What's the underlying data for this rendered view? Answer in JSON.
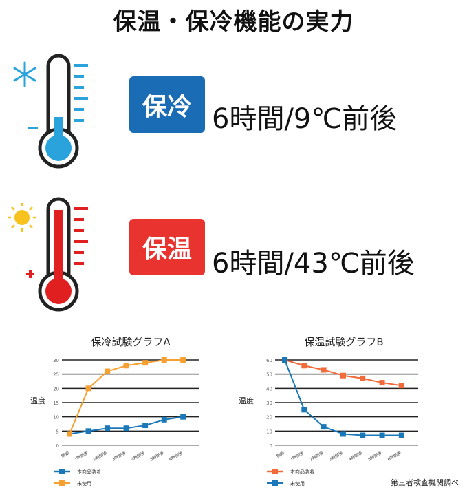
{
  "title": "保温・保冷機能の実力",
  "cold": {
    "badge": "保冷",
    "spec": "6時間/9℃前後",
    "color": "#1a6db5",
    "icon": "snowflake-icon"
  },
  "hot": {
    "badge": "保温",
    "spec": "6時間/43℃前後",
    "color": "#e8332f",
    "icon": "sun-icon"
  },
  "source": "第三者検査機関調べ",
  "chart_data": [
    {
      "type": "line",
      "title": "保冷試験グラフA",
      "ylabel": "温度",
      "ylim": [
        0,
        30
      ],
      "yticks": [
        0,
        5,
        10,
        15,
        20,
        25,
        30
      ],
      "categories": [
        "開始",
        "1時間後",
        "2時間後",
        "3時間後",
        "4時間後",
        "5時間後",
        "6時間後"
      ],
      "grid": true,
      "legend": "bottom-left",
      "series": [
        {
          "name": "本商品装着",
          "color": "#1a78b8",
          "values": [
            4,
            5,
            6,
            6,
            7,
            9,
            10
          ]
        },
        {
          "name": "未使用",
          "color": "#f5a030",
          "values": [
            4,
            20,
            26,
            28,
            29,
            30,
            30
          ]
        }
      ]
    },
    {
      "type": "line",
      "title": "保温試験グラフB",
      "ylabel": "温度",
      "ylim": [
        0,
        60
      ],
      "yticks": [
        0,
        10,
        20,
        30,
        40,
        50,
        60
      ],
      "categories": [
        "開始",
        "1時間後",
        "2時間後",
        "3時間後",
        "4時間後",
        "5時間後",
        "6時間後"
      ],
      "grid": true,
      "legend": "bottom-left",
      "series": [
        {
          "name": "本商品装着",
          "color": "#f06a3a",
          "values": [
            60,
            56,
            53,
            49,
            47,
            44,
            42
          ]
        },
        {
          "name": "未使用",
          "color": "#1a78b8",
          "values": [
            60,
            25,
            13,
            8,
            7,
            7,
            7
          ]
        }
      ]
    }
  ]
}
